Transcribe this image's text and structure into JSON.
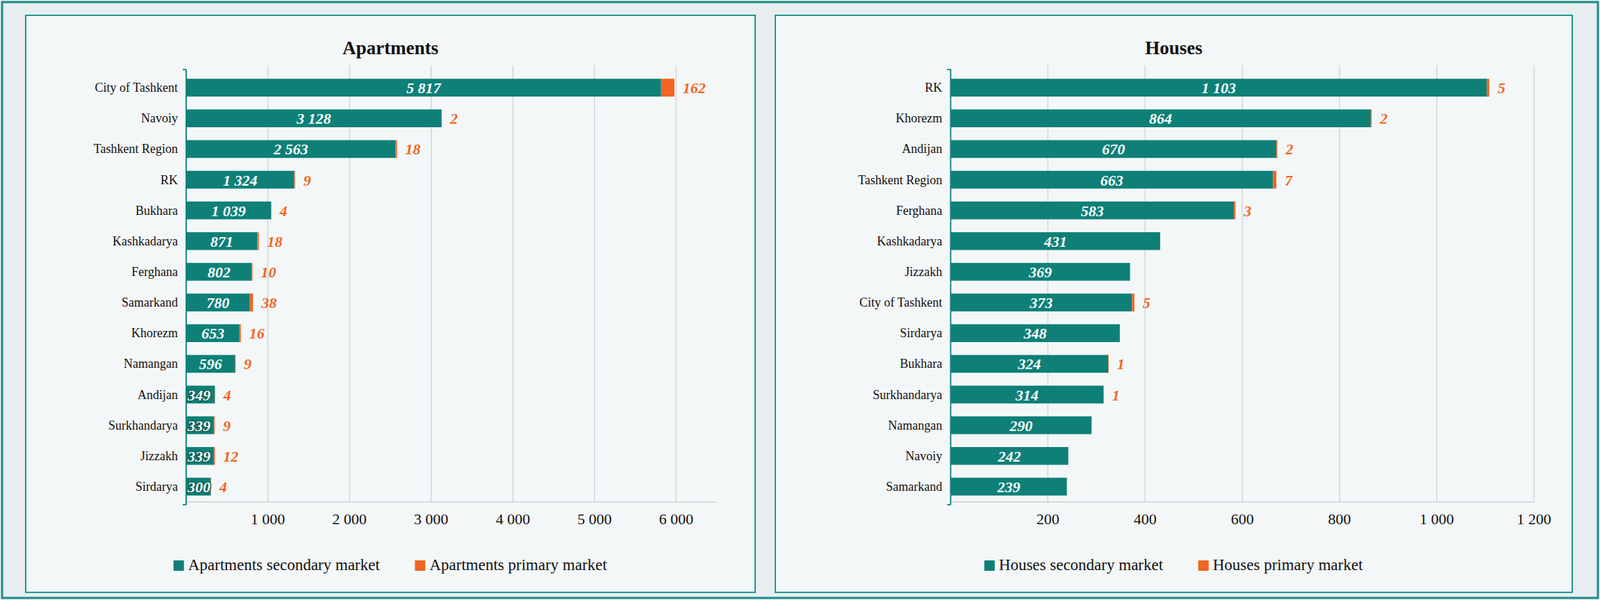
{
  "chart_data": [
    {
      "type": "bar",
      "title": "Apartments",
      "orientation": "horizontal",
      "stacked": true,
      "grid": true,
      "legend": "bottom",
      "data_labels": true,
      "categories": [
        "City of Tashkent",
        "Navoiy",
        "Tashkent Region",
        "RK",
        "Bukhara",
        "Kashkadarya",
        "Ferghana",
        "Samarkand",
        "Khorezm",
        "Namangan",
        "Andijan",
        "Surkhandarya",
        "Jizzakh",
        "Sirdarya"
      ],
      "series": [
        {
          "name": "Apartments secondary market",
          "color": "#0e8078",
          "values": [
            5817,
            3128,
            2563,
            1324,
            1039,
            871,
            802,
            780,
            653,
            596,
            349,
            339,
            339,
            300
          ],
          "value_labels": [
            "5 817",
            "3 128",
            "2 563",
            "1 324",
            "1 039",
            "871",
            "802",
            "780",
            "653",
            "596",
            "349",
            "339",
            "339",
            "300"
          ]
        },
        {
          "name": "Apartments primary market",
          "color": "#f26522",
          "values": [
            162,
            2,
            18,
            9,
            4,
            18,
            10,
            38,
            16,
            9,
            4,
            9,
            12,
            4
          ]
        }
      ],
      "xlim": [
        0,
        6500
      ],
      "xticks": [
        {
          "value": 1000,
          "label": "1 000"
        },
        {
          "value": 2000,
          "label": "2 000"
        },
        {
          "value": 3000,
          "label": "3 000"
        },
        {
          "value": 4000,
          "label": "4 000"
        },
        {
          "value": 5000,
          "label": "5 000"
        },
        {
          "value": 6000,
          "label": "6 000"
        }
      ]
    },
    {
      "type": "bar",
      "title": "Houses",
      "orientation": "horizontal",
      "stacked": true,
      "grid": true,
      "legend": "bottom",
      "data_labels": true,
      "categories": [
        "RK",
        "Khorezm",
        "Andijan",
        "Tashkent Region",
        "Ferghana",
        "Kashkadarya",
        "Jizzakh",
        "City of Tashkent",
        "Sirdarya",
        "Bukhara",
        "Surkhandarya",
        "Namangan",
        "Navoiy",
        "Samarkand"
      ],
      "series": [
        {
          "name": "Houses secondary market",
          "color": "#0e8078",
          "values": [
            1103,
            864,
            670,
            663,
            583,
            431,
            369,
            373,
            348,
            324,
            314,
            290,
            242,
            239
          ],
          "value_labels": [
            "1 103",
            "864",
            "670",
            "663",
            "583",
            "431",
            "369",
            "373",
            "348",
            "324",
            "314",
            "290",
            "242",
            "239"
          ]
        },
        {
          "name": "Houses primary market",
          "color": "#f26522",
          "values": [
            5,
            2,
            2,
            7,
            3,
            null,
            null,
            5,
            null,
            1,
            1,
            null,
            null,
            null
          ]
        }
      ],
      "xlim": [
        0,
        1200
      ],
      "xticks": [
        200,
        400,
        600,
        800,
        {
          "value": 1000,
          "label": "1 000"
        },
        {
          "value": 1200,
          "label": "1 200"
        }
      ]
    }
  ]
}
